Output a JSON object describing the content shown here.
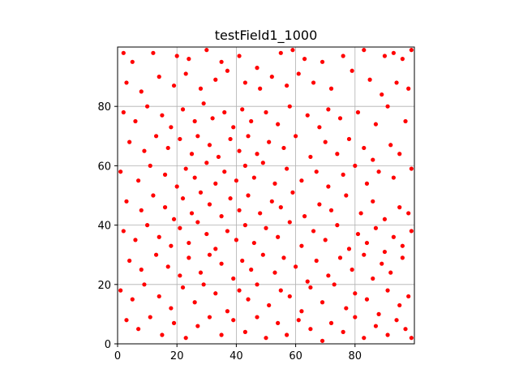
{
  "chart_data": {
    "type": "scatter",
    "title": "testField1_1000",
    "xlabel": "",
    "ylabel": "",
    "xlim": [
      0,
      100
    ],
    "ylim": [
      0,
      100
    ],
    "xticks": [
      0,
      20,
      40,
      60,
      80
    ],
    "yticks": [
      0,
      20,
      40,
      60,
      80
    ],
    "grid": true,
    "marker_color": "#ff0000",
    "series": [
      {
        "points": [
          [
            2,
            98
          ],
          [
            5,
            95
          ],
          [
            12,
            98
          ],
          [
            20,
            97
          ],
          [
            24,
            96
          ],
          [
            30,
            99
          ],
          [
            35,
            95
          ],
          [
            41,
            97
          ],
          [
            47,
            93
          ],
          [
            55,
            98
          ],
          [
            59,
            99
          ],
          [
            63,
            96
          ],
          [
            69,
            95
          ],
          [
            76,
            97
          ],
          [
            83,
            99
          ],
          [
            90,
            97
          ],
          [
            93,
            98
          ],
          [
            96,
            96
          ],
          [
            99,
            99
          ],
          [
            3,
            88
          ],
          [
            8,
            85
          ],
          [
            14,
            90
          ],
          [
            19,
            87
          ],
          [
            23,
            91
          ],
          [
            28,
            86
          ],
          [
            33,
            89
          ],
          [
            37,
            92
          ],
          [
            43,
            88
          ],
          [
            48,
            86
          ],
          [
            52,
            90
          ],
          [
            57,
            87
          ],
          [
            61,
            91
          ],
          [
            66,
            88
          ],
          [
            72,
            86
          ],
          [
            79,
            92
          ],
          [
            85,
            89
          ],
          [
            89,
            84
          ],
          [
            94,
            88
          ],
          [
            98,
            86
          ],
          [
            2,
            78
          ],
          [
            6,
            75
          ],
          [
            10,
            80
          ],
          [
            15,
            77
          ],
          [
            18,
            73
          ],
          [
            22,
            79
          ],
          [
            26,
            75
          ],
          [
            29,
            81
          ],
          [
            32,
            76
          ],
          [
            36,
            78
          ],
          [
            39,
            73
          ],
          [
            42,
            79
          ],
          [
            45,
            75
          ],
          [
            50,
            78
          ],
          [
            54,
            74
          ],
          [
            58,
            80
          ],
          [
            64,
            77
          ],
          [
            68,
            73
          ],
          [
            71,
            79
          ],
          [
            75,
            76
          ],
          [
            81,
            78
          ],
          [
            87,
            74
          ],
          [
            91,
            80
          ],
          [
            97,
            75
          ],
          [
            4,
            68
          ],
          [
            9,
            65
          ],
          [
            13,
            70
          ],
          [
            17,
            66
          ],
          [
            21,
            69
          ],
          [
            25,
            64
          ],
          [
            27,
            70
          ],
          [
            31,
            67
          ],
          [
            34,
            63
          ],
          [
            38,
            69
          ],
          [
            41,
            65
          ],
          [
            44,
            70
          ],
          [
            47,
            64
          ],
          [
            51,
            68
          ],
          [
            56,
            66
          ],
          [
            60,
            70
          ],
          [
            65,
            63
          ],
          [
            70,
            68
          ],
          [
            74,
            64
          ],
          [
            78,
            69
          ],
          [
            83,
            66
          ],
          [
            86,
            62
          ],
          [
            92,
            67
          ],
          [
            95,
            64
          ],
          [
            1,
            58
          ],
          [
            7,
            55
          ],
          [
            11,
            60
          ],
          [
            16,
            57
          ],
          [
            20,
            53
          ],
          [
            23,
            59
          ],
          [
            26,
            56
          ],
          [
            30,
            61
          ],
          [
            33,
            54
          ],
          [
            36,
            58
          ],
          [
            40,
            55
          ],
          [
            43,
            60
          ],
          [
            46,
            56
          ],
          [
            49,
            61
          ],
          [
            53,
            54
          ],
          [
            57,
            59
          ],
          [
            62,
            55
          ],
          [
            67,
            58
          ],
          [
            71,
            53
          ],
          [
            76,
            57
          ],
          [
            80,
            60
          ],
          [
            84,
            54
          ],
          [
            88,
            58
          ],
          [
            93,
            56
          ],
          [
            99,
            59
          ],
          [
            3,
            48
          ],
          [
            8,
            45
          ],
          [
            12,
            50
          ],
          [
            16,
            46
          ],
          [
            19,
            42
          ],
          [
            22,
            49
          ],
          [
            25,
            44
          ],
          [
            28,
            51
          ],
          [
            31,
            47
          ],
          [
            35,
            43
          ],
          [
            38,
            49
          ],
          [
            41,
            45
          ],
          [
            44,
            50
          ],
          [
            48,
            44
          ],
          [
            52,
            48
          ],
          [
            55,
            46
          ],
          [
            59,
            51
          ],
          [
            63,
            43
          ],
          [
            68,
            47
          ],
          [
            72,
            45
          ],
          [
            77,
            50
          ],
          [
            82,
            44
          ],
          [
            86,
            48
          ],
          [
            90,
            42
          ],
          [
            95,
            46
          ],
          [
            98,
            44
          ],
          [
            2,
            38
          ],
          [
            6,
            35
          ],
          [
            10,
            40
          ],
          [
            14,
            36
          ],
          [
            18,
            33
          ],
          [
            21,
            39
          ],
          [
            24,
            34
          ],
          [
            27,
            41
          ],
          [
            30,
            37
          ],
          [
            33,
            32
          ],
          [
            37,
            38
          ],
          [
            40,
            35
          ],
          [
            43,
            40
          ],
          [
            46,
            34
          ],
          [
            50,
            39
          ],
          [
            54,
            36
          ],
          [
            58,
            41
          ],
          [
            62,
            33
          ],
          [
            66,
            38
          ],
          [
            70,
            35
          ],
          [
            74,
            40
          ],
          [
            78,
            32
          ],
          [
            81,
            37
          ],
          [
            84,
            34
          ],
          [
            87,
            39
          ],
          [
            90,
            31
          ],
          [
            93,
            36
          ],
          [
            96,
            33
          ],
          [
            99,
            38
          ],
          [
            4,
            28
          ],
          [
            8,
            25
          ],
          [
            13,
            30
          ],
          [
            17,
            26
          ],
          [
            21,
            23
          ],
          [
            24,
            29
          ],
          [
            28,
            24
          ],
          [
            31,
            30
          ],
          [
            35,
            27
          ],
          [
            39,
            22
          ],
          [
            42,
            28
          ],
          [
            45,
            25
          ],
          [
            49,
            30
          ],
          [
            53,
            24
          ],
          [
            56,
            29
          ],
          [
            60,
            26
          ],
          [
            64,
            21
          ],
          [
            67,
            28
          ],
          [
            71,
            23
          ],
          [
            75,
            29
          ],
          [
            79,
            25
          ],
          [
            83,
            30
          ],
          [
            86,
            22
          ],
          [
            89,
            27
          ],
          [
            92,
            24
          ],
          [
            96,
            29
          ],
          [
            1,
            18
          ],
          [
            5,
            15
          ],
          [
            9,
            20
          ],
          [
            14,
            16
          ],
          [
            18,
            12
          ],
          [
            22,
            19
          ],
          [
            26,
            14
          ],
          [
            29,
            20
          ],
          [
            33,
            17
          ],
          [
            37,
            11
          ],
          [
            41,
            18
          ],
          [
            44,
            15
          ],
          [
            47,
            20
          ],
          [
            51,
            13
          ],
          [
            55,
            18
          ],
          [
            58,
            16
          ],
          [
            62,
            11
          ],
          [
            65,
            19
          ],
          [
            69,
            14
          ],
          [
            73,
            20
          ],
          [
            77,
            12
          ],
          [
            80,
            17
          ],
          [
            84,
            15
          ],
          [
            88,
            10
          ],
          [
            91,
            18
          ],
          [
            95,
            13
          ],
          [
            98,
            16
          ],
          [
            3,
            8
          ],
          [
            7,
            5
          ],
          [
            11,
            9
          ],
          [
            15,
            3
          ],
          [
            19,
            7
          ],
          [
            23,
            2
          ],
          [
            27,
            6
          ],
          [
            31,
            9
          ],
          [
            35,
            3
          ],
          [
            39,
            8
          ],
          [
            43,
            4
          ],
          [
            47,
            9
          ],
          [
            50,
            2
          ],
          [
            54,
            7
          ],
          [
            57,
            3
          ],
          [
            61,
            8
          ],
          [
            65,
            5
          ],
          [
            69,
            1
          ],
          [
            72,
            7
          ],
          [
            76,
            4
          ],
          [
            80,
            9
          ],
          [
            83,
            2
          ],
          [
            87,
            6
          ],
          [
            91,
            3
          ],
          [
            94,
            8
          ],
          [
            97,
            5
          ],
          [
            99,
            2
          ]
        ]
      }
    ]
  }
}
